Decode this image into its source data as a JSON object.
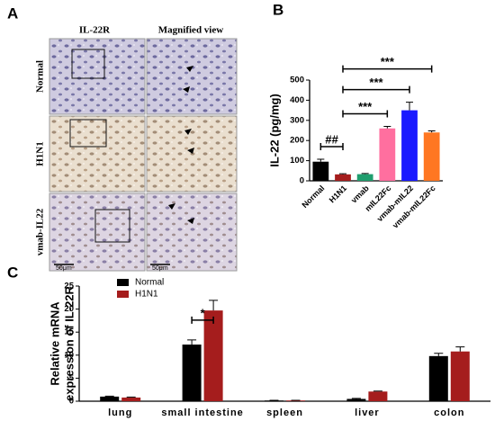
{
  "panel_labels": [
    "A",
    "B",
    "C"
  ],
  "panel_a": {
    "columns": [
      "IL-22R",
      "Magnified view"
    ],
    "rows": [
      "Normal",
      "H1N1",
      "vmab-IL22"
    ],
    "scale_bars": [
      "50μm",
      "50μm"
    ]
  },
  "chart_data": [
    {
      "type": "bar",
      "y_label": "IL-22 (pg/mg)",
      "categories": [
        "Normal",
        "H1N1",
        "vmab",
        "mIL22Fc",
        "vmab-mIL22",
        "vmab-mIL22Fc"
      ],
      "values": [
        95,
        32,
        33,
        260,
        350,
        240
      ],
      "errors": [
        12,
        3,
        3,
        10,
        40,
        8
      ],
      "colors": [
        "#000000",
        "#a51d1d",
        "#1f9e6e",
        "#ff6f9f",
        "#1a1aff",
        "#ff7722"
      ],
      "ylim": [
        0,
        500
      ],
      "yticks": [
        0,
        100,
        200,
        300,
        400,
        500
      ],
      "annotations": [
        {
          "label": "##",
          "between": [
            "Normal",
            "H1N1"
          ]
        },
        {
          "label": "***",
          "between": [
            "H1N1",
            "mIL22Fc"
          ]
        },
        {
          "label": "***",
          "between": [
            "H1N1",
            "vmab-mIL22"
          ]
        },
        {
          "label": "***",
          "between": [
            "H1N1",
            "vmab-mIL22Fc"
          ]
        }
      ]
    },
    {
      "type": "grouped_bar",
      "y_label": [
        "Relative mRNA",
        "expression of IL-22R"
      ],
      "categories": [
        "lung",
        "small intestine",
        "spleen",
        "liver",
        "colon"
      ],
      "series": [
        {
          "name": "Normal",
          "color": "#000000",
          "values": [
            1.0,
            12.3,
            0.15,
            0.5,
            9.8
          ],
          "errors": [
            0.1,
            1.0,
            0.05,
            0.1,
            0.6
          ]
        },
        {
          "name": "H1N1",
          "color": "#a51d1d",
          "values": [
            0.8,
            19.7,
            0.15,
            2.1,
            10.8
          ],
          "errors": [
            0.1,
            2.2,
            0.05,
            0.1,
            1.0
          ]
        }
      ],
      "ylim": [
        0,
        25
      ],
      "yticks": [
        0,
        5,
        10,
        15,
        20,
        25
      ],
      "annotations": [
        {
          "label": "*",
          "category": "small intestine",
          "between": [
            "Normal",
            "H1N1"
          ]
        }
      ]
    }
  ]
}
